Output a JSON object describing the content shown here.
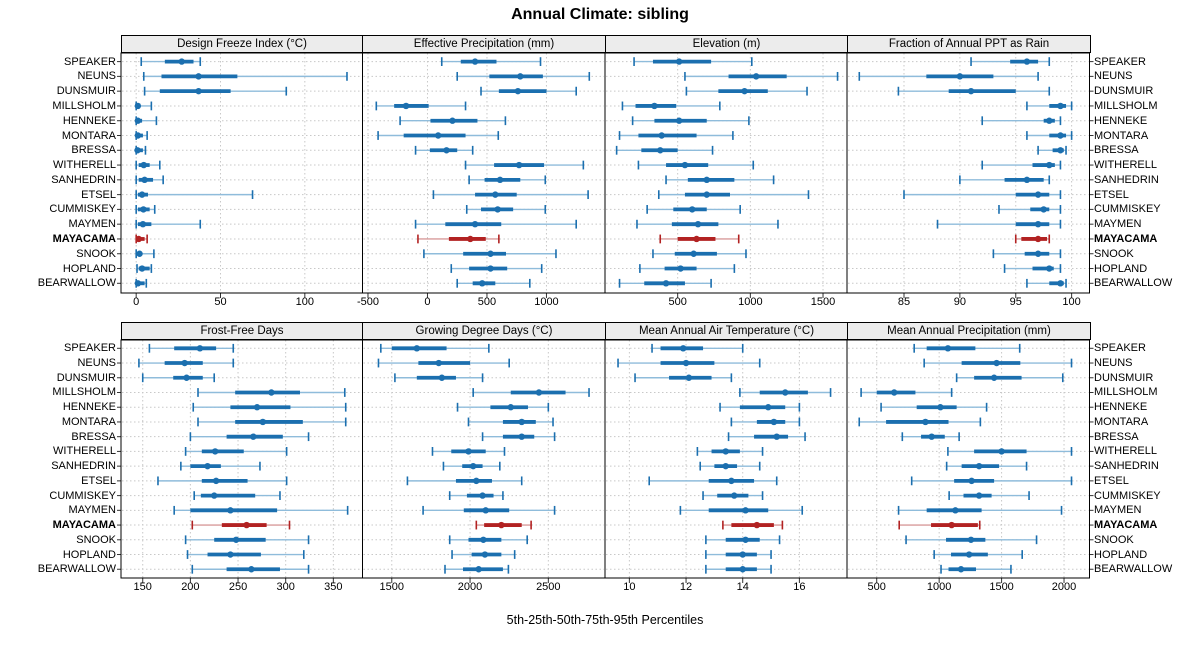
{
  "title": "Annual Climate: sibling",
  "caption": "5th-25th-50th-75th-95th Percentiles",
  "percentile_labels": [
    "5th",
    "25th",
    "50th",
    "75th",
    "95th"
  ],
  "sites": [
    "SPEAKER",
    "NEUNS",
    "DUNSMUIR",
    "MILLSHOLM",
    "HENNEKE",
    "MONTARA",
    "BRESSA",
    "WITHERELL",
    "SANHEDRIN",
    "ETSEL",
    "CUMMISKEY",
    "MAYMEN",
    "MAYACAMA",
    "SNOOK",
    "HOPLAND",
    "BEARWALLOW"
  ],
  "highlight_site": "MAYACAMA",
  "colors": {
    "series_solid": "#1B6FAF",
    "series_light": "#8FBCDB",
    "highlight_solid": "#B22222",
    "highlight_light": "#D89B9B",
    "strip_bg": "#ECECEC",
    "grid_line": "#C8C8C8",
    "panel_border": "#000000"
  },
  "chart_data": [
    {
      "type": "interval-dotplot",
      "title": "Design Freeze Index (°C)",
      "ticks": [
        0,
        50,
        100
      ],
      "xlim": [
        -9,
        134.2
      ],
      "values": [
        [
          3,
          17,
          27,
          34,
          38
        ],
        [
          4.5,
          15,
          37,
          60,
          125
        ],
        [
          5,
          14,
          37,
          56,
          89
        ],
        [
          0,
          0.3,
          1,
          2,
          9
        ],
        [
          0,
          0.3,
          1,
          3.5,
          12
        ],
        [
          0,
          0.2,
          1,
          4,
          6.5
        ],
        [
          0,
          0.2,
          0.8,
          4,
          5.5
        ],
        [
          0,
          1.5,
          4.5,
          8,
          14
        ],
        [
          0,
          1.5,
          5,
          10,
          16
        ],
        [
          0,
          1,
          3.5,
          7,
          69
        ],
        [
          0,
          1,
          4.3,
          8,
          11
        ],
        [
          0,
          1,
          4,
          9,
          38
        ],
        [
          0,
          0.5,
          1.5,
          5,
          6.5
        ],
        [
          0,
          0.5,
          2,
          3.5,
          10.5
        ],
        [
          0.5,
          1.5,
          3.5,
          8,
          9
        ],
        [
          0,
          0.3,
          1,
          5,
          6
        ]
      ]
    },
    {
      "type": "interval-dotplot",
      "title": "Effective Precipitation (mm)",
      "ticks": [
        -500,
        0,
        500,
        1000
      ],
      "xlim": [
        -546,
        1492
      ],
      "values": [
        [
          120,
          280,
          400,
          580,
          950
        ],
        [
          250,
          520,
          780,
          970,
          1360
        ],
        [
          450,
          600,
          760,
          1000,
          1250
        ],
        [
          -430,
          -280,
          -180,
          10,
          320
        ],
        [
          -230,
          25,
          210,
          420,
          655
        ],
        [
          -415,
          -200,
          90,
          320,
          595
        ],
        [
          -100,
          20,
          160,
          250,
          380
        ],
        [
          320,
          560,
          770,
          980,
          1310
        ],
        [
          350,
          480,
          610,
          780,
          990
        ],
        [
          50,
          400,
          570,
          750,
          1350
        ],
        [
          330,
          450,
          590,
          720,
          990
        ],
        [
          -100,
          150,
          400,
          620,
          1250
        ],
        [
          -80,
          180,
          360,
          490,
          600
        ],
        [
          -30,
          300,
          530,
          660,
          1080
        ],
        [
          200,
          350,
          530,
          670,
          960
        ],
        [
          250,
          380,
          460,
          570,
          860
        ]
      ]
    },
    {
      "type": "interval-dotplot",
      "title": "Elevation (m)",
      "ticks": [
        500,
        1000,
        1500
      ],
      "xlim": [
        0,
        1665
      ],
      "values": [
        [
          200,
          330,
          510,
          730,
          1010
        ],
        [
          550,
          850,
          1040,
          1250,
          1600
        ],
        [
          560,
          780,
          960,
          1120,
          1390
        ],
        [
          120,
          210,
          340,
          490,
          790
        ],
        [
          190,
          340,
          510,
          700,
          990
        ],
        [
          100,
          230,
          390,
          630,
          880
        ],
        [
          80,
          250,
          380,
          500,
          740
        ],
        [
          230,
          420,
          550,
          710,
          1020
        ],
        [
          420,
          570,
          700,
          890,
          1160
        ],
        [
          370,
          550,
          700,
          860,
          1400
        ],
        [
          290,
          470,
          600,
          700,
          930
        ],
        [
          220,
          460,
          640,
          780,
          1190
        ],
        [
          380,
          500,
          630,
          760,
          920
        ],
        [
          330,
          480,
          610,
          770,
          970
        ],
        [
          240,
          410,
          520,
          630,
          890
        ],
        [
          100,
          270,
          420,
          550,
          730
        ]
      ]
    },
    {
      "type": "interval-dotplot",
      "title": "Fraction of Annual PPT as Rain",
      "ticks": [
        85,
        90,
        95,
        100
      ],
      "xlim": [
        79.9,
        101.6
      ],
      "values": [
        [
          91,
          94.5,
          96,
          97,
          98
        ],
        [
          81,
          87,
          90,
          93,
          97
        ],
        [
          84.5,
          89,
          91,
          95,
          98
        ],
        [
          96,
          98,
          99,
          99.5,
          100
        ],
        [
          92,
          97.5,
          98,
          98.5,
          99
        ],
        [
          96,
          98,
          99,
          99.5,
          100
        ],
        [
          97,
          98.3,
          99,
          99.3,
          99.5
        ],
        [
          92,
          96.5,
          98,
          98.5,
          99
        ],
        [
          90,
          94,
          96,
          97.5,
          98
        ],
        [
          85,
          95,
          97,
          98,
          99
        ],
        [
          93.5,
          96.3,
          97.5,
          98,
          99
        ],
        [
          88,
          95,
          97,
          98,
          99
        ],
        [
          95,
          95.5,
          97,
          97.8,
          98
        ],
        [
          93,
          95.8,
          97,
          98,
          99
        ],
        [
          94,
          96.5,
          98,
          98.4,
          99
        ],
        [
          96,
          98,
          99,
          99.3,
          99.5
        ]
      ]
    },
    {
      "type": "interval-dotplot",
      "title": "Frost-Free Days",
      "ticks": [
        150,
        200,
        250,
        300,
        350
      ],
      "xlim": [
        127.2,
        380.6
      ],
      "values": [
        [
          157,
          183,
          210,
          227,
          245
        ],
        [
          146,
          173,
          194,
          213,
          245
        ],
        [
          150,
          182,
          196,
          213,
          225
        ],
        [
          208,
          247,
          285,
          315,
          362
        ],
        [
          203,
          242,
          270,
          305,
          363
        ],
        [
          208,
          247,
          276,
          318,
          363
        ],
        [
          200,
          238,
          266,
          297,
          324
        ],
        [
          195,
          212,
          226,
          256,
          301
        ],
        [
          190,
          200,
          218,
          232,
          273
        ],
        [
          166,
          212,
          227,
          260,
          301
        ],
        [
          204,
          211,
          225,
          268,
          294
        ],
        [
          183,
          200,
          242,
          291,
          365
        ],
        [
          202,
          233,
          259,
          280,
          304
        ],
        [
          195,
          225,
          248,
          279,
          324
        ],
        [
          197,
          218,
          242,
          274,
          319
        ],
        [
          202,
          238,
          264,
          294,
          324
        ]
      ]
    },
    {
      "type": "interval-dotplot",
      "title": "Growing Degree Days (°C)",
      "ticks": [
        1500,
        2000,
        2500
      ],
      "xlim": [
        1313,
        2862
      ],
      "values": [
        [
          1430,
          1500,
          1660,
          1850,
          2120
        ],
        [
          1415,
          1670,
          1800,
          2000,
          2250
        ],
        [
          1520,
          1660,
          1820,
          1910,
          2080
        ],
        [
          2020,
          2260,
          2440,
          2610,
          2760
        ],
        [
          1920,
          2130,
          2260,
          2370,
          2500
        ],
        [
          1990,
          2210,
          2330,
          2420,
          2530
        ],
        [
          2080,
          2210,
          2330,
          2410,
          2540
        ],
        [
          1760,
          1880,
          1990,
          2100,
          2220
        ],
        [
          1830,
          1950,
          2020,
          2080,
          2190
        ],
        [
          1600,
          1910,
          2040,
          2140,
          2330
        ],
        [
          1870,
          1980,
          2080,
          2150,
          2210
        ],
        [
          1700,
          1960,
          2100,
          2250,
          2540
        ],
        [
          2040,
          2090,
          2200,
          2330,
          2390
        ],
        [
          1870,
          1990,
          2085,
          2200,
          2365
        ],
        [
          1885,
          2010,
          2095,
          2200,
          2285
        ],
        [
          1840,
          1955,
          2055,
          2210,
          2245
        ]
      ]
    },
    {
      "type": "interval-dotplot",
      "title": "Mean Annual Air Temperature (°C)",
      "ticks": [
        10,
        12,
        14,
        16
      ],
      "xlim": [
        9.14,
        17.68
      ],
      "values": [
        [
          10.8,
          11.1,
          11.9,
          12.6,
          14.0
        ],
        [
          9.6,
          11.1,
          12.0,
          13.0,
          14.6
        ],
        [
          10.2,
          11.4,
          12.1,
          12.9,
          13.6
        ],
        [
          13.9,
          14.6,
          15.5,
          16.3,
          17.1
        ],
        [
          13.2,
          13.9,
          14.9,
          15.5,
          16.0
        ],
        [
          13.6,
          14.5,
          15.1,
          15.5,
          16.0
        ],
        [
          13.5,
          14.4,
          15.2,
          15.6,
          16.2
        ],
        [
          12.4,
          12.9,
          13.4,
          13.9,
          14.7
        ],
        [
          12.5,
          13.0,
          13.4,
          13.8,
          14.6
        ],
        [
          10.7,
          12.8,
          13.6,
          14.4,
          15.2
        ],
        [
          12.6,
          13.1,
          13.7,
          14.2,
          14.7
        ],
        [
          11.8,
          12.8,
          14.1,
          14.9,
          16.1
        ],
        [
          13.3,
          13.6,
          14.5,
          15.1,
          15.4
        ],
        [
          12.7,
          13.4,
          14.1,
          14.6,
          15.3
        ],
        [
          12.7,
          13.4,
          14.0,
          14.5,
          15.0
        ],
        [
          12.7,
          13.4,
          14.0,
          14.5,
          15.0
        ]
      ]
    },
    {
      "type": "interval-dotplot",
      "title": "Mean Annual Precipitation (mm)",
      "ticks": [
        500,
        1000,
        1500,
        2000
      ],
      "xlim": [
        262,
        2204
      ],
      "values": [
        [
          800,
          900,
          1070,
          1290,
          1645
        ],
        [
          880,
          1180,
          1460,
          1650,
          2060
        ],
        [
          1140,
          1280,
          1440,
          1660,
          1990
        ],
        [
          375,
          500,
          640,
          810,
          1100
        ],
        [
          535,
          820,
          1010,
          1140,
          1380
        ],
        [
          360,
          575,
          890,
          1075,
          1330
        ],
        [
          705,
          855,
          940,
          1045,
          1160
        ],
        [
          1070,
          1280,
          1500,
          1700,
          2060
        ],
        [
          1060,
          1180,
          1320,
          1480,
          1700
        ],
        [
          780,
          1120,
          1260,
          1440,
          2060
        ],
        [
          1080,
          1195,
          1320,
          1420,
          1720
        ],
        [
          675,
          900,
          1130,
          1340,
          1980
        ],
        [
          680,
          935,
          1100,
          1310,
          1325
        ],
        [
          735,
          1055,
          1255,
          1370,
          1780
        ],
        [
          960,
          1095,
          1240,
          1390,
          1665
        ],
        [
          1015,
          1075,
          1175,
          1295,
          1575
        ]
      ]
    }
  ]
}
